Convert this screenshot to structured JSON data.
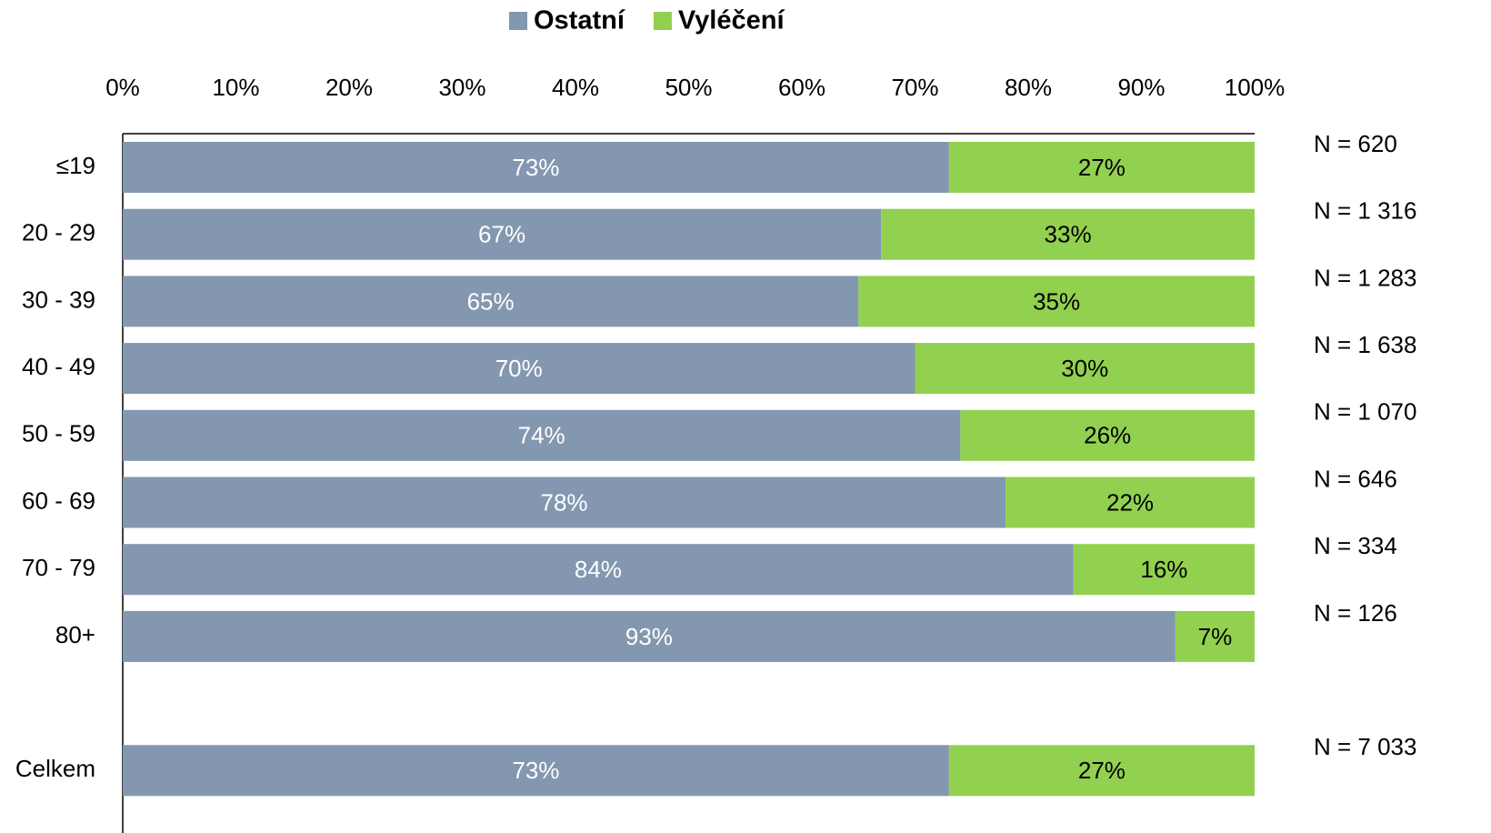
{
  "chart_data": {
    "type": "stacked_bar_horizontal",
    "categories": [
      "≤19",
      "20 - 29",
      "30 - 39",
      "40 - 49",
      "50 - 59",
      "60 - 69",
      "70 - 79",
      "80+",
      null,
      "Celkem"
    ],
    "series": [
      {
        "name": "Ostatní",
        "color": "#8497b0",
        "label_color": "#ffffff",
        "values": [
          73,
          67,
          65,
          70,
          74,
          78,
          84,
          93,
          null,
          73
        ],
        "value_labels": [
          "73%",
          "67%",
          "65%",
          "70%",
          "74%",
          "78%",
          "84%",
          "93%",
          null,
          "73%"
        ]
      },
      {
        "name": "Vyléčení",
        "color": "#92d050",
        "label_color": "#000000",
        "values": [
          27,
          33,
          35,
          30,
          26,
          22,
          16,
          7,
          null,
          27
        ],
        "value_labels": [
          "27%",
          "33%",
          "35%",
          "30%",
          "26%",
          "22%",
          "16%",
          "7%",
          null,
          "27%"
        ]
      }
    ],
    "annotations": [
      "N = 620",
      "N = 1 316",
      "N = 1 283",
      "N = 1 638",
      "N = 1 070",
      "N = 646",
      "N = 334",
      "N = 126",
      null,
      "N = 7 033"
    ],
    "xlim": [
      0,
      100
    ],
    "xticks": [
      {
        "value": 0,
        "label": "0%"
      },
      {
        "value": 10,
        "label": "10%"
      },
      {
        "value": 20,
        "label": "20%"
      },
      {
        "value": 30,
        "label": "30%"
      },
      {
        "value": 40,
        "label": "40%"
      },
      {
        "value": 50,
        "label": "50%"
      },
      {
        "value": 60,
        "label": "60%"
      },
      {
        "value": 70,
        "label": "70%"
      },
      {
        "value": 80,
        "label": "80%"
      },
      {
        "value": 90,
        "label": "90%"
      },
      {
        "value": 100,
        "label": "100%"
      }
    ],
    "legend": "top",
    "grid": false
  }
}
